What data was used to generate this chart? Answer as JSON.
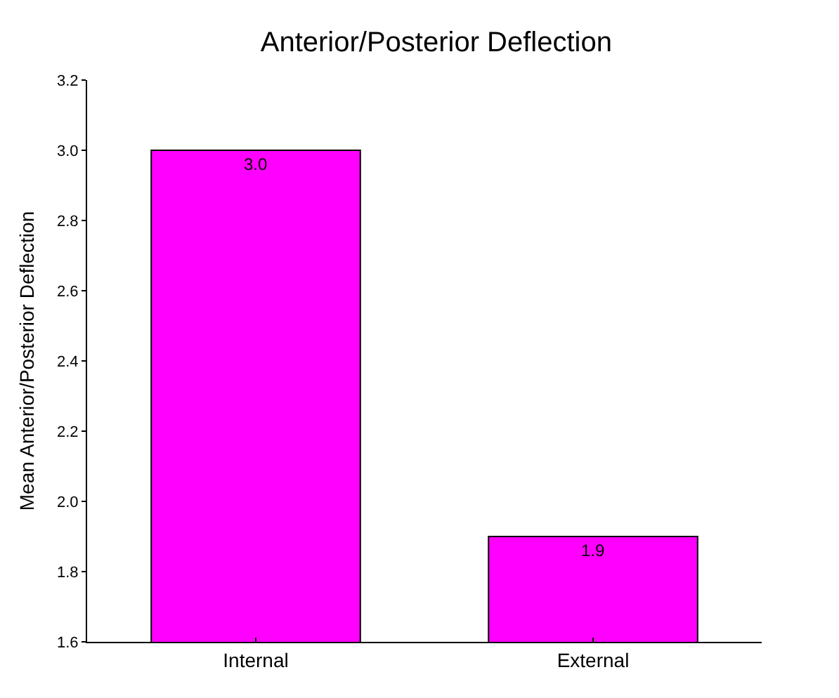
{
  "chart_data": {
    "type": "bar",
    "title": "Anterior/Posterior Deflection",
    "ylabel": "Mean Anterior/Posterior Deflection",
    "categories": [
      "Internal",
      "External"
    ],
    "values": [
      3.0,
      1.9
    ],
    "value_labels": [
      "3.0",
      "1.9"
    ],
    "color": "#ff00ff",
    "ylim": [
      1.6,
      3.2
    ],
    "yticks": [
      1.6,
      1.8,
      {
        "value": 2,
        "label": "2.0"
      },
      2.2,
      2.4,
      2.6,
      2.8,
      {
        "value": 3,
        "label": "3.0"
      },
      3.2
    ],
    "grid": false,
    "legend": false
  }
}
